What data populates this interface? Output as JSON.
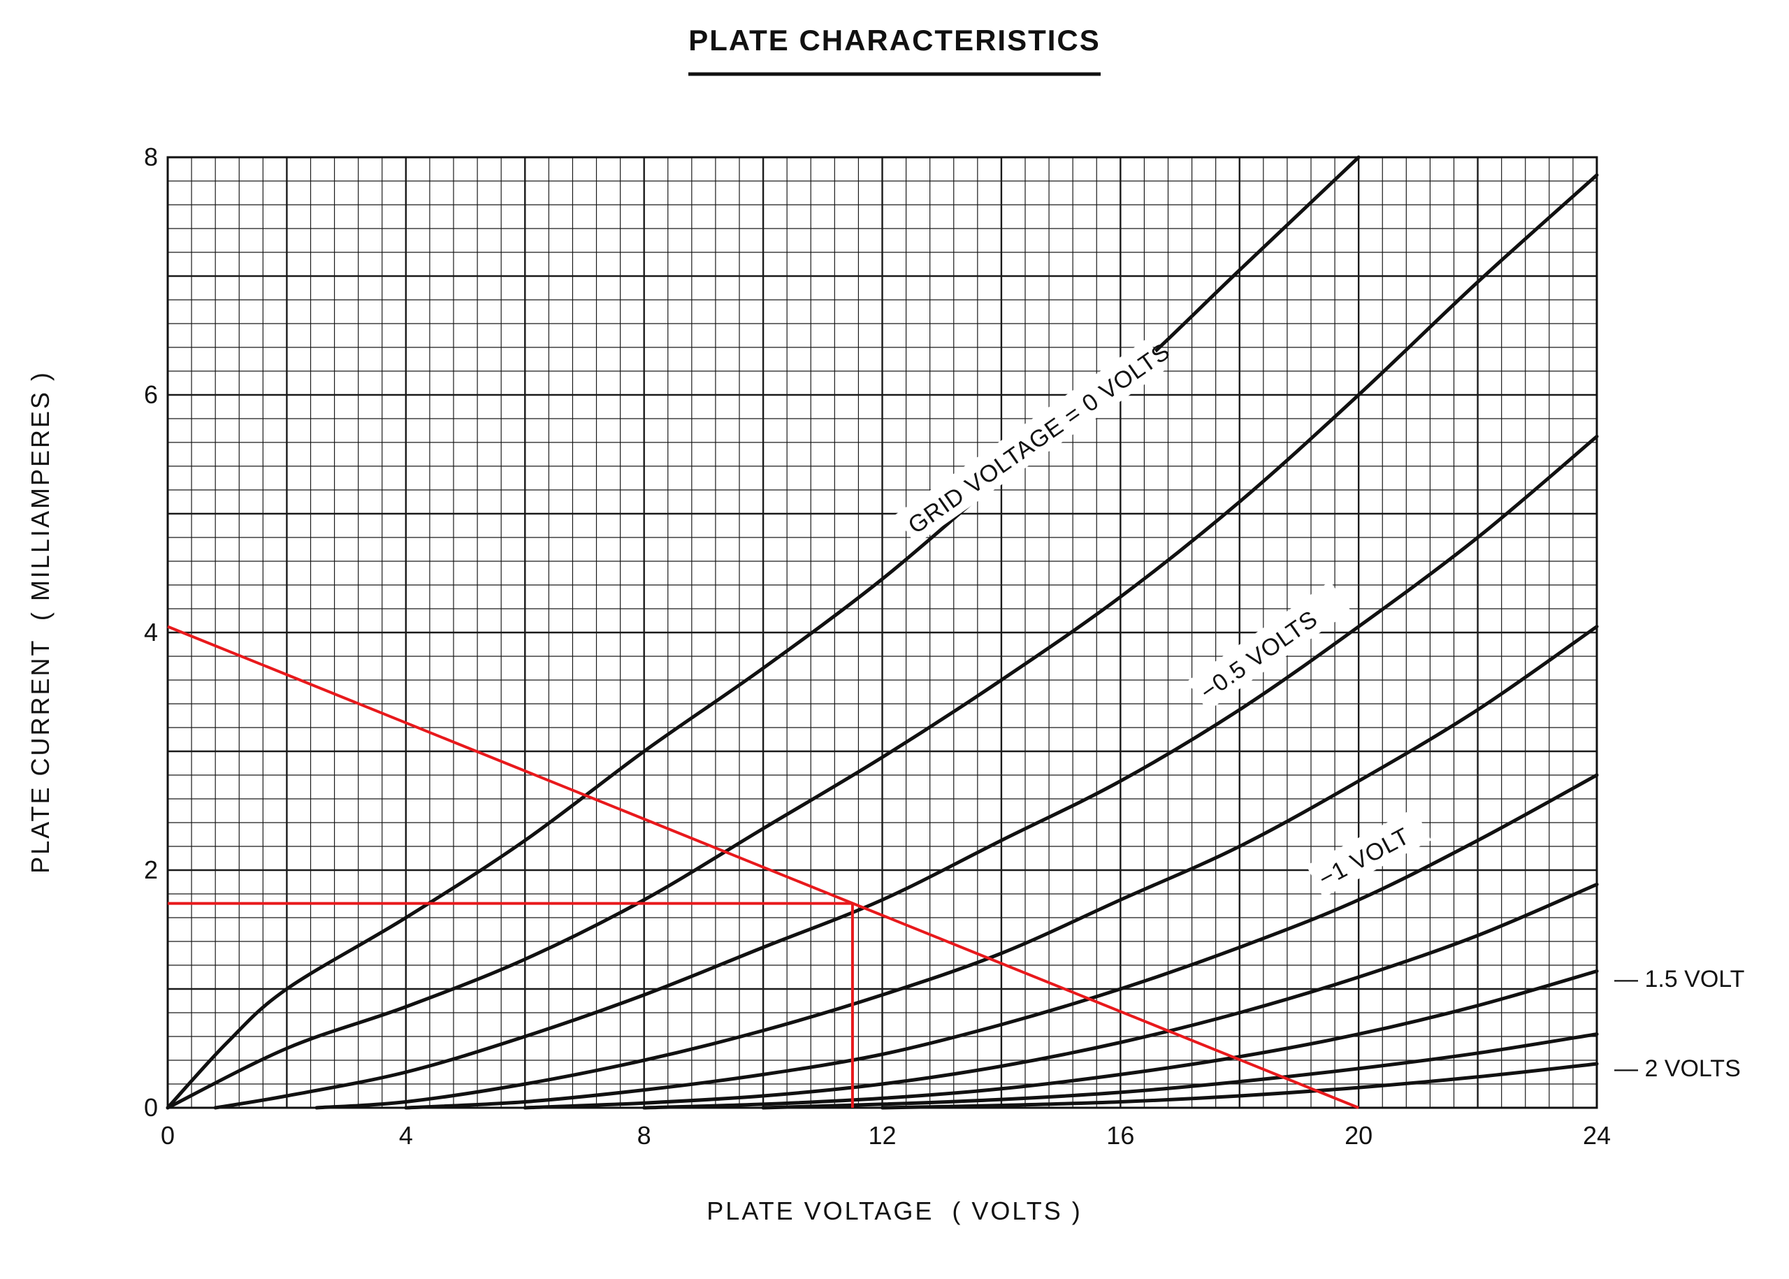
{
  "chart_data": {
    "type": "line",
    "title": "PLATE CHARACTERISTICS",
    "xlabel": "PLATE VOLTAGE  ( VOLTS )",
    "ylabel": "PLATE CURRENT  ( MILLIAMPERES )",
    "xlim": [
      0,
      24
    ],
    "ylim": [
      0,
      8
    ],
    "x_ticks": [
      0,
      4,
      8,
      12,
      16,
      20,
      24
    ],
    "x_tick_labels": [
      "0",
      "4",
      "8",
      "12",
      "16",
      "20",
      "24"
    ],
    "y_ticks": [
      0,
      2,
      4,
      6,
      8
    ],
    "y_tick_labels": [
      "0",
      "2",
      "4",
      "6",
      "8"
    ],
    "grid": true,
    "grid_minor_step_x": 0.4,
    "grid_minor_step_y": 0.2,
    "series": [
      {
        "name": "GRID VOLTAGE = 0 VOLTS",
        "x": [
          0,
          1,
          2,
          4,
          6,
          8,
          10,
          12,
          14,
          16,
          18,
          20
        ],
        "y": [
          0,
          0.55,
          1.0,
          1.6,
          2.25,
          3.0,
          3.7,
          4.45,
          5.3,
          6.1,
          7.05,
          8.0
        ]
      },
      {
        "name": "",
        "x": [
          0,
          2,
          4,
          6,
          8,
          10,
          12,
          14,
          16,
          18,
          20,
          22,
          24
        ],
        "y": [
          0,
          0.5,
          0.85,
          1.25,
          1.75,
          2.35,
          2.95,
          3.6,
          4.3,
          5.1,
          6.0,
          6.95,
          7.85
        ]
      },
      {
        "name": "−0.5 VOLTS",
        "x": [
          0.8,
          2,
          4,
          6,
          8,
          10,
          12,
          14,
          16,
          18,
          20,
          22,
          24
        ],
        "y": [
          0,
          0.1,
          0.3,
          0.6,
          0.95,
          1.35,
          1.75,
          2.25,
          2.75,
          3.35,
          4.05,
          4.8,
          5.65
        ]
      },
      {
        "name": "",
        "x": [
          2.5,
          4,
          6,
          8,
          10,
          12,
          14,
          16,
          18,
          20,
          22,
          24
        ],
        "y": [
          0,
          0.05,
          0.2,
          0.4,
          0.65,
          0.95,
          1.3,
          1.75,
          2.2,
          2.75,
          3.35,
          4.05
        ]
      },
      {
        "name": "−1 VOLT",
        "x": [
          4,
          6,
          8,
          10,
          12,
          14,
          16,
          18,
          20,
          22,
          24
        ],
        "y": [
          0,
          0.05,
          0.15,
          0.28,
          0.45,
          0.7,
          1.0,
          1.35,
          1.75,
          2.25,
          2.8
        ]
      },
      {
        "name": "",
        "x": [
          6,
          8,
          10,
          12,
          14,
          16,
          18,
          20,
          22,
          24
        ],
        "y": [
          0,
          0.04,
          0.1,
          0.2,
          0.35,
          0.55,
          0.8,
          1.1,
          1.45,
          1.88
        ]
      },
      {
        "name": "−1.5 VOLT",
        "x": [
          8,
          10,
          12,
          14,
          16,
          18,
          20,
          22,
          24
        ],
        "y": [
          0,
          0.03,
          0.08,
          0.16,
          0.28,
          0.43,
          0.62,
          0.86,
          1.15
        ]
      },
      {
        "name": "",
        "x": [
          10,
          12,
          14,
          16,
          18,
          20,
          22,
          24
        ],
        "y": [
          0,
          0.03,
          0.07,
          0.13,
          0.22,
          0.33,
          0.46,
          0.62
        ]
      },
      {
        "name": "−2 VOLTS",
        "x": [
          12,
          14,
          16,
          18,
          20,
          22,
          24
        ],
        "y": [
          0,
          0.02,
          0.05,
          0.1,
          0.17,
          0.26,
          0.37
        ]
      }
    ],
    "load_line": {
      "x": [
        0,
        20
      ],
      "y": [
        4.05,
        0
      ]
    },
    "operating_point": {
      "x": 11.5,
      "y": 1.72
    },
    "curve_labels": [
      "GRID VOLTAGE = 0 VOLTS",
      "−0.5 VOLTS",
      "−1 VOLT"
    ],
    "side_labels": [
      "— 1.5 VOLT",
      "— 2 VOLTS"
    ],
    "colors": {
      "curves": "#111111",
      "grid": "#1a1a1a",
      "load_line": "#e8191c",
      "background": "#ffffff"
    }
  }
}
